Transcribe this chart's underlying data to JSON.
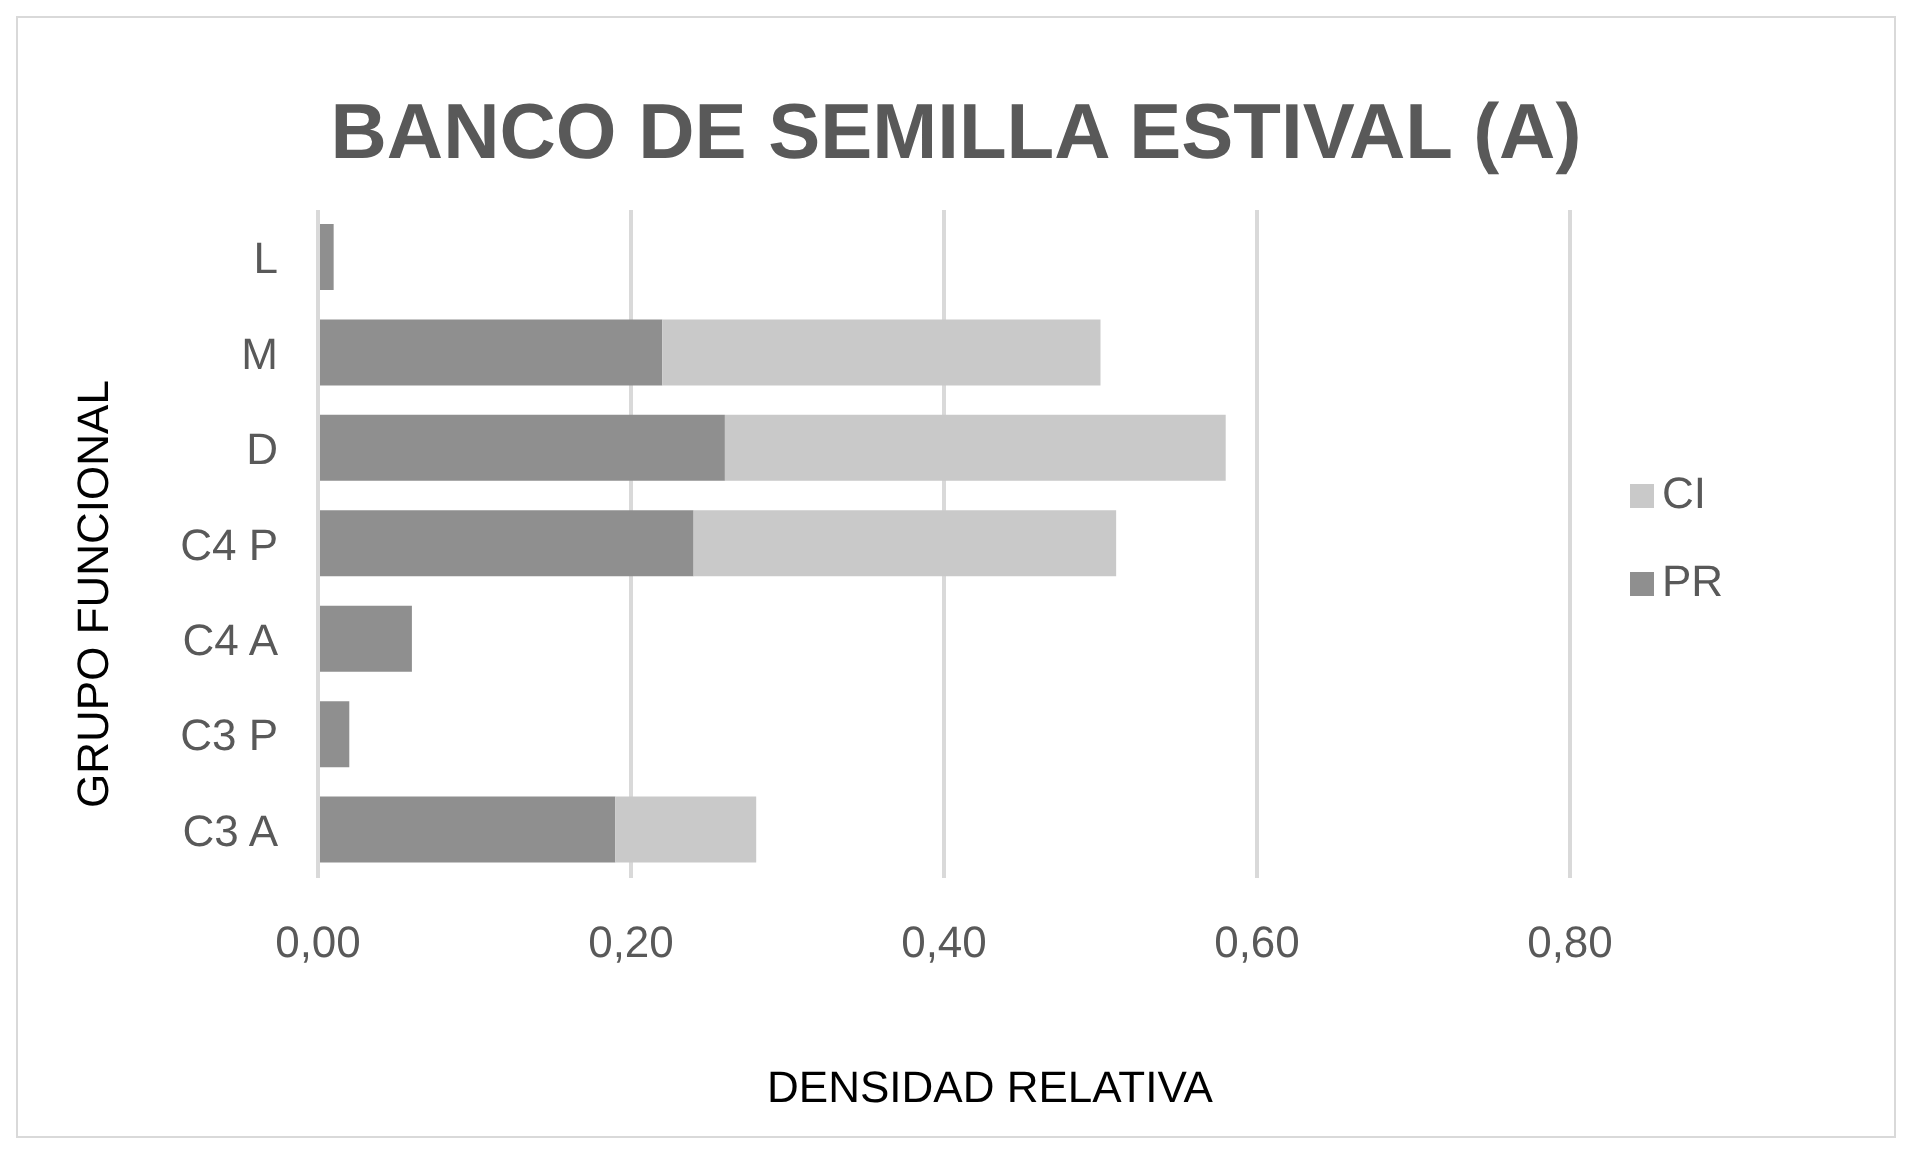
{
  "chart_data": {
    "type": "bar",
    "orientation": "horizontal",
    "stacked": true,
    "title": "BANCO DE SEMILLA ESTIVAL (A)",
    "xlabel": "DENSIDAD RELATIVA",
    "ylabel": "GRUPO FUNCIONAL",
    "categories": [
      "L",
      "M",
      "D",
      "C4 P",
      "C4 A",
      "C3 P",
      "C3 A"
    ],
    "series": [
      {
        "name": "PR",
        "color": "#8f8f8f",
        "values": [
          0.01,
          0.22,
          0.26,
          0.24,
          0.06,
          0.02,
          0.19
        ]
      },
      {
        "name": "CI",
        "color": "#c9c9c9",
        "values": [
          null,
          0.28,
          0.32,
          0.27,
          null,
          null,
          0.09
        ]
      }
    ],
    "xlim": [
      0,
      0.8
    ],
    "xticks": [
      {
        "value": 0,
        "label": "0,00"
      },
      {
        "value": 0.2,
        "label": "0,20"
      },
      {
        "value": 0.4,
        "label": "0,40"
      },
      {
        "value": 0.6,
        "label": "0,60"
      },
      {
        "value": 0.8,
        "label": "0,80"
      }
    ],
    "grid": "x",
    "legend": "right"
  }
}
